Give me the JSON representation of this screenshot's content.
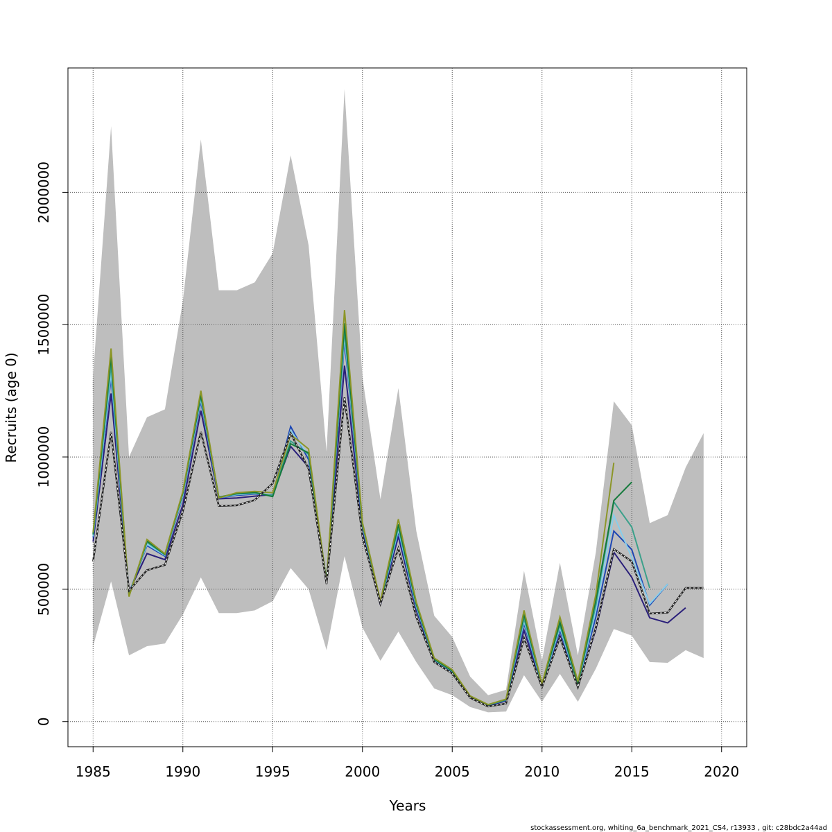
{
  "chart_data": {
    "type": "line",
    "xlabel": "Years",
    "ylabel": "Recruits (age 0)",
    "xlim": [
      1983.6,
      2021.4
    ],
    "ylim": [
      -95000,
      2470000
    ],
    "x_ticks": [
      1985,
      1990,
      1995,
      2000,
      2005,
      2010,
      2015,
      2020
    ],
    "y_ticks": [
      0,
      500000,
      1000000,
      1500000,
      2000000
    ],
    "x_tick_labels": [
      "1985",
      "1990",
      "1995",
      "2000",
      "2005",
      "2010",
      "2015",
      "2020"
    ],
    "y_tick_labels": [
      "0",
      "500000",
      "1000000",
      "1500000",
      "2000000"
    ],
    "grid": true,
    "confidence_band": {
      "color": "#bebebe",
      "x": [
        1985,
        1986,
        1987,
        1988,
        1989,
        1990,
        1991,
        1992,
        1993,
        1994,
        1995,
        1996,
        1997,
        1998,
        1999,
        2000,
        2001,
        2002,
        2003,
        2004,
        2005,
        2006,
        2007,
        2008,
        2009,
        2010,
        2011,
        2012,
        2013,
        2014,
        2015,
        2016,
        2017,
        2018,
        2019
      ],
      "upper": [
        1310000,
        2250000,
        1000000,
        1150000,
        1180000,
        1590000,
        2200000,
        1630000,
        1630000,
        1660000,
        1770000,
        2140000,
        1800000,
        1020000,
        2390000,
        1300000,
        840000,
        1260000,
        720000,
        400000,
        320000,
        170000,
        100000,
        120000,
        570000,
        230000,
        600000,
        250000,
        640000,
        1210000,
        1120000,
        750000,
        780000,
        960000,
        1090000
      ],
      "lower": [
        285000,
        530000,
        250000,
        285000,
        295000,
        405000,
        545000,
        410000,
        410000,
        420000,
        455000,
        580000,
        500000,
        270000,
        625000,
        355000,
        230000,
        340000,
        225000,
        125000,
        100000,
        55000,
        35000,
        38000,
        175000,
        75000,
        180000,
        75000,
        200000,
        350000,
        325000,
        225000,
        222000,
        270000,
        240000
      ]
    },
    "series": [
      {
        "color": "#2a1f7a",
        "dashed": false,
        "x": [
          1985,
          1986,
          1987,
          1988,
          1989,
          1990,
          1991,
          1992,
          1993,
          1994,
          1995,
          1996,
          1997,
          1998,
          1999,
          2000,
          2001,
          2002,
          2003,
          2004,
          2005,
          2006,
          2007,
          2008,
          2009,
          2010,
          2011,
          2012,
          2013,
          2014,
          2015,
          2016,
          2017,
          2018
        ],
        "values": [
          680000,
          1240000,
          490000,
          635000,
          612000,
          820000,
          1175000,
          842000,
          845000,
          852000,
          858000,
          1040000,
          962000,
          525000,
          1345000,
          725000,
          440000,
          700000,
          420000,
          228000,
          185000,
          92000,
          60000,
          78000,
          345000,
          132000,
          325000,
          132000,
          348000,
          640000,
          545000,
          392000,
          373000,
          430000
        ]
      },
      {
        "color": "#1f48b4",
        "dashed": false,
        "x": [
          1985,
          1986,
          1987,
          1988,
          1989,
          1990,
          1991,
          1992,
          1993,
          1994,
          1995,
          1996,
          1997,
          1998,
          1999,
          2000,
          2001,
          2002,
          2003,
          2004,
          2005,
          2006,
          2007,
          2008,
          2009,
          2010,
          2011,
          2012,
          2013,
          2014,
          2015,
          2016,
          2017
        ],
        "values": [
          695000,
          1300000,
          485000,
          665000,
          625000,
          850000,
          1210000,
          845000,
          855000,
          860000,
          855000,
          1115000,
          990000,
          530000,
          1440000,
          735000,
          445000,
          715000,
          430000,
          232000,
          188000,
          94000,
          62000,
          80000,
          370000,
          136000,
          345000,
          138000,
          395000,
          720000,
          650000,
          440000,
          520000
        ]
      },
      {
        "color": "#87ceeb",
        "dashed": false,
        "x": [
          1985,
          1986,
          1987,
          1988,
          1989,
          1990,
          1991,
          1992,
          1993,
          1994,
          1995,
          1996,
          1997,
          1998,
          1999,
          2000,
          2001,
          2002,
          2003,
          2004,
          2005,
          2006,
          2007,
          2008,
          2009,
          2010,
          2011,
          2012,
          2013,
          2014,
          2015,
          2016,
          2017
        ],
        "values": [
          700000,
          1320000,
          482000,
          670000,
          628000,
          855000,
          1220000,
          846000,
          858000,
          862000,
          856000,
          1100000,
          1005000,
          530000,
          1460000,
          740000,
          448000,
          725000,
          435000,
          233000,
          190000,
          95000,
          63000,
          82000,
          380000,
          138000,
          355000,
          140000,
          420000,
          780000,
          620000,
          445000,
          520000
        ]
      },
      {
        "color": "#3aa08a",
        "dashed": false,
        "x": [
          1985,
          1986,
          1987,
          1988,
          1989,
          1990,
          1991,
          1992,
          1993,
          1994,
          1995,
          1996,
          1997,
          1998,
          1999,
          2000,
          2001,
          2002,
          2003,
          2004,
          2005,
          2006,
          2007,
          2008,
          2009,
          2010,
          2011,
          2012,
          2013,
          2014,
          2015,
          2016
        ],
        "values": [
          705000,
          1350000,
          478000,
          678000,
          630000,
          862000,
          1230000,
          847000,
          860000,
          864000,
          855000,
          1060000,
          1010000,
          530000,
          1480000,
          745000,
          450000,
          735000,
          440000,
          234000,
          191000,
          95000,
          63000,
          82000,
          390000,
          139000,
          365000,
          142000,
          440000,
          830000,
          735000,
          505000
        ]
      },
      {
        "color": "#157a3c",
        "dashed": false,
        "x": [
          1985,
          1986,
          1987,
          1988,
          1989,
          1990,
          1991,
          1992,
          1993,
          1994,
          1995,
          1996,
          1997,
          1998,
          1999,
          2000,
          2001,
          2002,
          2003,
          2004,
          2005,
          2006,
          2007,
          2008,
          2009,
          2010,
          2011,
          2012,
          2013,
          2014,
          2015
        ],
        "values": [
          710000,
          1380000,
          475000,
          682000,
          632000,
          866000,
          1235000,
          848000,
          862000,
          866000,
          850000,
          1050000,
          1015000,
          528000,
          1505000,
          748000,
          452000,
          745000,
          445000,
          236000,
          192000,
          96000,
          64000,
          84000,
          405000,
          140000,
          375000,
          144000,
          460000,
          835000,
          905000
        ]
      },
      {
        "color": "#8c9628",
        "dashed": false,
        "x": [
          1985,
          1986,
          1987,
          1988,
          1989,
          1990,
          1991,
          1992,
          1993,
          1994,
          1995,
          1996,
          1997,
          1998,
          1999,
          2000,
          2001,
          2002,
          2003,
          2004,
          2005,
          2006,
          2007,
          2008,
          2009,
          2010,
          2011,
          2012,
          2013,
          2014
        ],
        "values": [
          715000,
          1410000,
          472000,
          688000,
          634000,
          870000,
          1250000,
          845000,
          865000,
          870000,
          865000,
          1085000,
          1030000,
          525000,
          1555000,
          752000,
          455000,
          765000,
          452000,
          240000,
          196000,
          97000,
          64000,
          85000,
          420000,
          142000,
          395000,
          152000,
          480000,
          978000
        ]
      },
      {
        "color": "#222222",
        "dashed": true,
        "x": [
          1985,
          1986,
          1987,
          1988,
          1989,
          1990,
          1991,
          1992,
          1993,
          1994,
          1995,
          1996,
          1997,
          1998,
          1999,
          2000,
          2001,
          2002,
          2003,
          2004,
          2005,
          2006,
          2007,
          2008,
          2009,
          2010,
          2011,
          2012,
          2013,
          2014,
          2015,
          2016,
          2017,
          2018,
          2019
        ],
        "values": [
          605000,
          1095000,
          495000,
          572000,
          592000,
          795000,
          1095000,
          815000,
          817000,
          837000,
          900000,
          1090000,
          955000,
          520000,
          1225000,
          700000,
          445000,
          655000,
          395000,
          225000,
          182000,
          90000,
          57000,
          68000,
          315000,
          130000,
          318000,
          130000,
          355000,
          652000,
          605000,
          408000,
          412000,
          505000,
          505000
        ]
      }
    ]
  },
  "footer_text": "stockassessment.org, whiting_6a_benchmark_2021_CS4, r13933 , git: c28bdc2a44ad"
}
